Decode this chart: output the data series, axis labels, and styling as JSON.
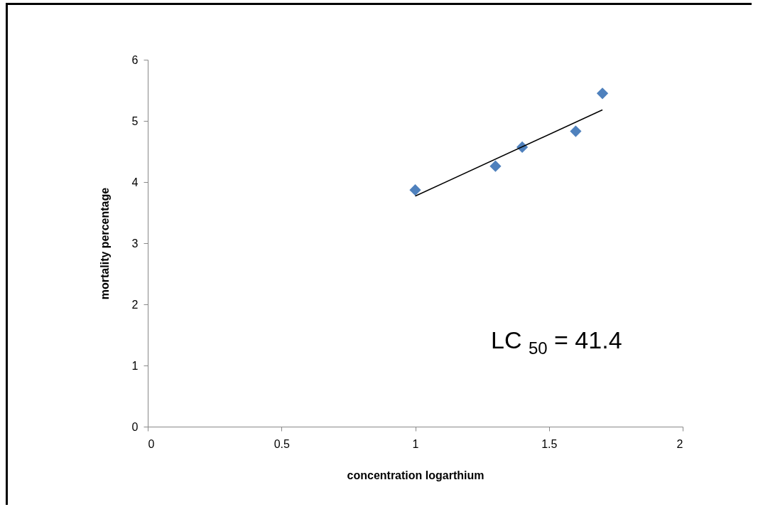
{
  "chart_data": {
    "type": "scatter",
    "xlabel": "concentration logarthium",
    "ylabel": "mortality percentage",
    "xlim": [
      0,
      2
    ],
    "xticks": [
      0,
      0.5,
      1,
      1.5,
      2
    ],
    "ylim": [
      0,
      6
    ],
    "yticks": [
      0,
      1,
      2,
      3,
      4,
      5,
      6
    ],
    "grid": false,
    "series": [
      {
        "marker": "diamond",
        "color": "#4f81bd",
        "x": [
          1,
          1.3,
          1.4,
          1.6,
          1.7
        ],
        "values": [
          3.87,
          4.26,
          4.57,
          4.83,
          5.45
        ]
      },
      {
        "type": "line",
        "marker": "none",
        "color": "#000000",
        "x": [
          1,
          1.7
        ],
        "values": [
          3.77,
          5.18
        ]
      }
    ],
    "annotations": [
      "LC $_{50}$ = 41.4"
    ]
  }
}
